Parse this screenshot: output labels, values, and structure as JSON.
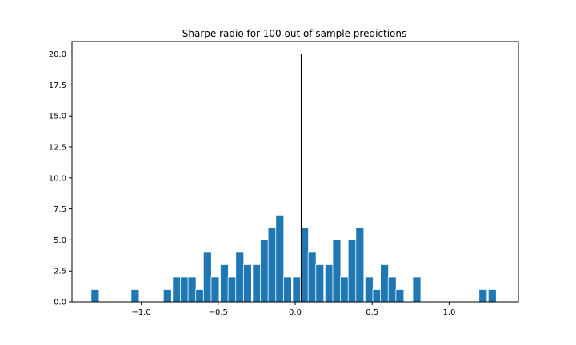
{
  "chart_data": {
    "type": "bar",
    "title": "Sharpe radio for 100 out of sample predictions",
    "xlabel": "",
    "ylabel": "",
    "xlim": [
      -1.45,
      1.45
    ],
    "ylim": [
      0,
      21
    ],
    "bin_width": 0.052,
    "bar_color": "#1f77b4",
    "vline": {
      "x": 0.04,
      "y_max": 20,
      "color": "#000000"
    },
    "x_ticks": [
      -1.0,
      -0.5,
      0.0,
      0.5,
      1.0
    ],
    "x_tick_labels": [
      "−1.0",
      "−0.5",
      "0.0",
      "0.5",
      "1.0"
    ],
    "y_ticks": [
      0,
      2.5,
      5,
      7.5,
      10,
      12.5,
      15,
      17.5,
      20
    ],
    "y_tick_labels": [
      "0.0",
      "2.5",
      "5.0",
      "7.5",
      "10.0",
      "12.5",
      "15.0",
      "17.5",
      "20.0"
    ],
    "bars": [
      {
        "x": -1.3,
        "value": 1
      },
      {
        "x": -1.04,
        "value": 1
      },
      {
        "x": -0.83,
        "value": 1
      },
      {
        "x": -0.77,
        "value": 2
      },
      {
        "x": -0.72,
        "value": 2
      },
      {
        "x": -0.67,
        "value": 2
      },
      {
        "x": -0.62,
        "value": 1
      },
      {
        "x": -0.57,
        "value": 4
      },
      {
        "x": -0.52,
        "value": 2
      },
      {
        "x": -0.46,
        "value": 3
      },
      {
        "x": -0.41,
        "value": 2
      },
      {
        "x": -0.36,
        "value": 4
      },
      {
        "x": -0.31,
        "value": 3
      },
      {
        "x": -0.25,
        "value": 3
      },
      {
        "x": -0.2,
        "value": 5
      },
      {
        "x": -0.15,
        "value": 6
      },
      {
        "x": -0.1,
        "value": 7
      },
      {
        "x": -0.05,
        "value": 2
      },
      {
        "x": 0.01,
        "value": 2
      },
      {
        "x": 0.06,
        "value": 6
      },
      {
        "x": 0.11,
        "value": 4
      },
      {
        "x": 0.16,
        "value": 3
      },
      {
        "x": 0.22,
        "value": 3
      },
      {
        "x": 0.27,
        "value": 5
      },
      {
        "x": 0.32,
        "value": 2
      },
      {
        "x": 0.37,
        "value": 5
      },
      {
        "x": 0.42,
        "value": 6
      },
      {
        "x": 0.48,
        "value": 2
      },
      {
        "x": 0.53,
        "value": 1
      },
      {
        "x": 0.58,
        "value": 3
      },
      {
        "x": 0.63,
        "value": 2
      },
      {
        "x": 0.68,
        "value": 1
      },
      {
        "x": 0.79,
        "value": 2
      },
      {
        "x": 1.22,
        "value": 1
      },
      {
        "x": 1.28,
        "value": 1
      }
    ]
  }
}
